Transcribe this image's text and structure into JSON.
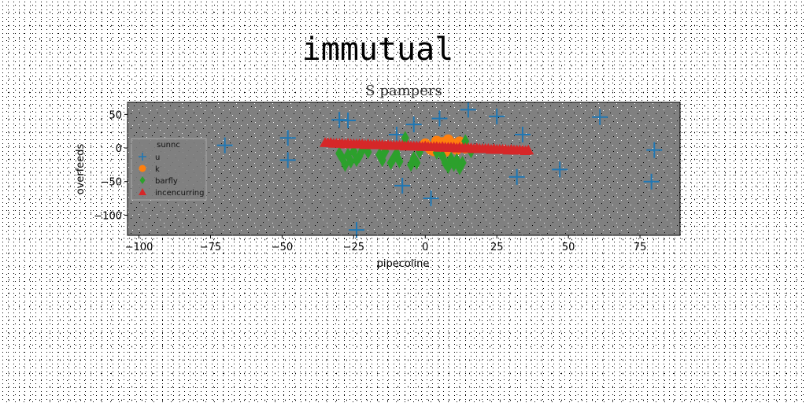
{
  "page": {
    "suptitle": "immutual"
  },
  "chart_data": {
    "type": "scatter",
    "title": "S pampers",
    "xlabel": "pipecoline",
    "ylabel": "overfeeds",
    "xlim": [
      -104,
      89
    ],
    "ylim": [
      -130,
      68
    ],
    "xticks": [
      -100,
      -75,
      -50,
      -25,
      0,
      25,
      50,
      75
    ],
    "yticks": [
      50,
      0,
      -50,
      -100
    ],
    "grid": false,
    "background": "#808080",
    "legend": {
      "title": "sunnc",
      "placement": "center-left"
    },
    "series": [
      {
        "name": "u",
        "marker": "plus",
        "color": "#1f77b4",
        "points": [
          [
            -70,
            4
          ],
          [
            -48,
            15
          ],
          [
            -48,
            -18
          ],
          [
            -30,
            42
          ],
          [
            -27,
            41
          ],
          [
            -24,
            -122
          ],
          [
            -8,
            -56
          ],
          [
            -10,
            20
          ],
          [
            -4,
            35
          ],
          [
            2,
            -75
          ],
          [
            5,
            44
          ],
          [
            15,
            57
          ],
          [
            25,
            47
          ],
          [
            32,
            -43
          ],
          [
            34,
            20
          ],
          [
            47,
            -32
          ],
          [
            61,
            46
          ],
          [
            79,
            -50
          ],
          [
            80,
            -3
          ]
        ]
      },
      {
        "name": "k",
        "marker": "circle",
        "color": "#ff7f0e",
        "points": [
          [
            0,
            6
          ],
          [
            1,
            2
          ],
          [
            2,
            -2
          ],
          [
            3,
            -4
          ],
          [
            4,
            10
          ],
          [
            5,
            6
          ],
          [
            6,
            0
          ],
          [
            6,
            8
          ],
          [
            7,
            -5
          ],
          [
            8,
            12
          ],
          [
            9,
            3
          ],
          [
            10,
            6
          ],
          [
            11,
            -2
          ],
          [
            12,
            9
          ],
          [
            13,
            4
          ],
          [
            14,
            0
          ]
        ]
      },
      {
        "name": "barfly",
        "marker": "diamond",
        "color": "#2ca02c",
        "points": [
          [
            -30,
            -8
          ],
          [
            -29,
            -15
          ],
          [
            -28,
            -25
          ],
          [
            -27,
            -10
          ],
          [
            -26,
            -20
          ],
          [
            -25,
            -5
          ],
          [
            -24,
            -18
          ],
          [
            -23,
            -12
          ],
          [
            -22,
            -3
          ],
          [
            -20,
            -6
          ],
          [
            -16,
            -10
          ],
          [
            -15,
            -18
          ],
          [
            -14,
            -5
          ],
          [
            -12,
            -22
          ],
          [
            -11,
            -15
          ],
          [
            -10,
            -8
          ],
          [
            -9,
            -20
          ],
          [
            -7,
            15
          ],
          [
            -5,
            -25
          ],
          [
            -4,
            -15
          ],
          [
            -3,
            -22
          ],
          [
            -2,
            -6
          ],
          [
            4,
            -7
          ],
          [
            6,
            -12
          ],
          [
            7,
            -22
          ],
          [
            8,
            -28
          ],
          [
            9,
            -16
          ],
          [
            10,
            -25
          ],
          [
            11,
            -18
          ],
          [
            12,
            -30
          ],
          [
            13,
            -22
          ],
          [
            14,
            10
          ],
          [
            16,
            -5
          ]
        ]
      },
      {
        "name": "incencurring",
        "marker": "triangle",
        "color": "#d62728",
        "points": [
          [
            -35,
            8
          ],
          [
            -34,
            8
          ],
          [
            -33,
            8
          ],
          [
            -32,
            7
          ],
          [
            -31,
            7
          ],
          [
            -30,
            7
          ],
          [
            -29,
            7
          ],
          [
            -28,
            6
          ],
          [
            -27,
            7
          ],
          [
            -26,
            6
          ],
          [
            -25,
            6
          ],
          [
            -24,
            6
          ],
          [
            -23,
            6
          ],
          [
            -22,
            6
          ],
          [
            -21,
            5
          ],
          [
            -20,
            6
          ],
          [
            -19,
            5
          ],
          [
            -18,
            5
          ],
          [
            -17,
            5
          ],
          [
            -16,
            5
          ],
          [
            -15,
            5
          ],
          [
            -14,
            4
          ],
          [
            -13,
            5
          ],
          [
            -12,
            4
          ],
          [
            -11,
            4
          ],
          [
            -10,
            4
          ],
          [
            -9,
            4
          ],
          [
            -8,
            4
          ],
          [
            -7,
            3
          ],
          [
            -6,
            4
          ],
          [
            -5,
            3
          ],
          [
            -4,
            3
          ],
          [
            -3,
            3
          ],
          [
            -2,
            3
          ],
          [
            -1,
            2
          ],
          [
            0,
            3
          ],
          [
            1,
            2
          ],
          [
            2,
            2
          ],
          [
            3,
            2
          ],
          [
            4,
            2
          ],
          [
            5,
            1
          ],
          [
            6,
            2
          ],
          [
            7,
            1
          ],
          [
            8,
            1
          ],
          [
            9,
            1
          ],
          [
            10,
            1
          ],
          [
            11,
            0
          ],
          [
            12,
            1
          ],
          [
            13,
            0
          ],
          [
            14,
            0
          ],
          [
            15,
            0
          ],
          [
            16,
            0
          ],
          [
            17,
            -1
          ],
          [
            18,
            0
          ],
          [
            19,
            -1
          ],
          [
            20,
            -1
          ],
          [
            21,
            -1
          ],
          [
            22,
            -1
          ],
          [
            23,
            -2
          ],
          [
            24,
            -1
          ],
          [
            25,
            -2
          ],
          [
            26,
            -2
          ],
          [
            27,
            -2
          ],
          [
            28,
            -2
          ],
          [
            29,
            -3
          ],
          [
            30,
            -2
          ],
          [
            31,
            -3
          ],
          [
            32,
            -3
          ],
          [
            33,
            -3
          ],
          [
            34,
            -3
          ],
          [
            35,
            -4
          ],
          [
            36,
            -3
          ]
        ]
      }
    ]
  }
}
